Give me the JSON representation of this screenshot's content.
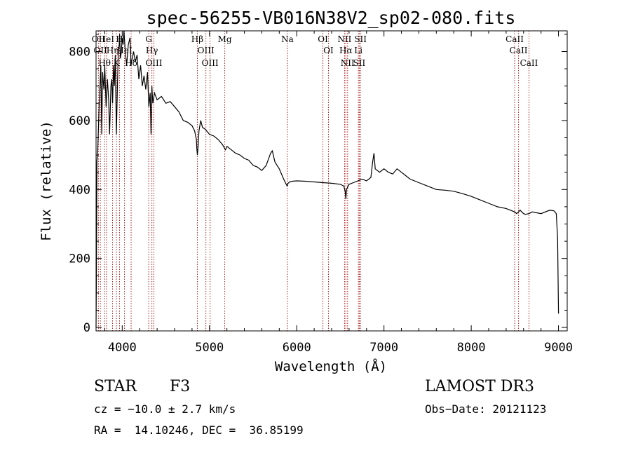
{
  "chart_data": {
    "type": "line",
    "title": "spec-56255-VB016N38V2_sp02-080.fits",
    "xlabel": "Wavelength (Å)",
    "ylabel": "Flux (relative)",
    "xlim": [
      3700,
      9100
    ],
    "ylim": [
      -10,
      860
    ],
    "x_ticks": [
      4000,
      5000,
      6000,
      7000,
      8000,
      9000
    ],
    "y_ticks": [
      0,
      200,
      400,
      600,
      800
    ],
    "x_tick_labels": [
      "4000",
      "5000",
      "6000",
      "7000",
      "8000",
      "9000"
    ],
    "y_tick_labels": [
      "0",
      "200",
      "400",
      "600",
      "800"
    ],
    "series": [
      {
        "name": "flux",
        "x": [
          3700,
          3703,
          3710,
          3720,
          3735,
          3745,
          3755,
          3765,
          3775,
          3790,
          3800,
          3815,
          3830,
          3845,
          3855,
          3870,
          3880,
          3890,
          3900,
          3910,
          3920,
          3933,
          3945,
          3955,
          3965,
          3970,
          3980,
          3990,
          4000,
          4010,
          4020,
          4035,
          4050,
          4070,
          4090,
          4101,
          4115,
          4130,
          4150,
          4170,
          4190,
          4210,
          4230,
          4250,
          4270,
          4290,
          4305,
          4320,
          4330,
          4340,
          4350,
          4370,
          4400,
          4450,
          4500,
          4550,
          4600,
          4650,
          4700,
          4750,
          4800,
          4830,
          4850,
          4855,
          4861,
          4868,
          4880,
          4900,
          4920,
          4950,
          5000,
          5050,
          5100,
          5150,
          5172,
          5183,
          5200,
          5250,
          5300,
          5350,
          5400,
          5450,
          5500,
          5550,
          5600,
          5650,
          5700,
          5720,
          5750,
          5800,
          5850,
          5870,
          5890,
          5895,
          5900,
          5920,
          5950,
          6000,
          6100,
          6200,
          6300,
          6400,
          6500,
          6540,
          6555,
          6563,
          6570,
          6600,
          6650,
          6700,
          6750,
          6800,
          6850,
          6870,
          6885,
          6900,
          6950,
          7000,
          7050,
          7100,
          7150,
          7200,
          7250,
          7300,
          7400,
          7500,
          7600,
          7700,
          7800,
          7900,
          8000,
          8100,
          8200,
          8300,
          8400,
          8500,
          8520,
          8542,
          8560,
          8600,
          8620,
          8662,
          8700,
          8800,
          8900,
          8950,
          8975,
          8990,
          9000
        ],
        "values": [
          0,
          120,
          480,
          520,
          640,
          700,
          760,
          560,
          740,
          690,
          760,
          640,
          720,
          660,
          560,
          700,
          720,
          650,
          760,
          700,
          790,
          560,
          700,
          800,
          820,
          850,
          780,
          800,
          840,
          820,
          860,
          800,
          760,
          820,
          840,
          760,
          780,
          800,
          770,
          790,
          720,
          760,
          700,
          730,
          690,
          740,
          640,
          680,
          560,
          700,
          650,
          680,
          660,
          670,
          650,
          655,
          640,
          625,
          600,
          595,
          585,
          570,
          545,
          520,
          500,
          520,
          570,
          600,
          580,
          575,
          560,
          555,
          545,
          530,
          520,
          515,
          525,
          515,
          505,
          500,
          490,
          485,
          470,
          465,
          455,
          470,
          505,
          512,
          480,
          460,
          430,
          420,
          410,
          412,
          418,
          422,
          424,
          425,
          424,
          422,
          420,
          418,
          415,
          410,
          395,
          372,
          400,
          415,
          420,
          425,
          430,
          425,
          435,
          480,
          505,
          460,
          450,
          460,
          450,
          445,
          460,
          450,
          440,
          430,
          420,
          410,
          400,
          398,
          395,
          388,
          380,
          370,
          360,
          350,
          345,
          335,
          330,
          335,
          340,
          330,
          328,
          330,
          335,
          330,
          340,
          338,
          330,
          260,
          40
        ]
      }
    ],
    "lines": [
      {
        "wavelength": 3727,
        "label": "OII"
      },
      {
        "wavelength": 3750,
        "label": "OII"
      },
      {
        "wavelength": 3798,
        "label": "Hθ"
      },
      {
        "wavelength": 3820,
        "label": "HeI"
      },
      {
        "wavelength": 3889,
        "label": "Hη"
      },
      {
        "wavelength": 3934,
        "label": "K"
      },
      {
        "wavelength": 3969,
        "label": "H"
      },
      {
        "wavelength": 4026,
        "label": "HeI"
      },
      {
        "wavelength": 4102,
        "label": "Hδ"
      },
      {
        "wavelength": 4304,
        "label": "G"
      },
      {
        "wavelength": 4340,
        "label": "Hγ"
      },
      {
        "wavelength": 4363,
        "label": "OIII"
      },
      {
        "wavelength": 4861,
        "label": "Hβ"
      },
      {
        "wavelength": 4959,
        "label": "OIII"
      },
      {
        "wavelength": 5007,
        "label": "OIII"
      },
      {
        "wavelength": 5175,
        "label": "Mg"
      },
      {
        "wavelength": 5893,
        "label": "Na"
      },
      {
        "wavelength": 6300,
        "label": "OI"
      },
      {
        "wavelength": 6364,
        "label": "OI"
      },
      {
        "wavelength": 6548,
        "label": "NII"
      },
      {
        "wavelength": 6563,
        "label": "Hα"
      },
      {
        "wavelength": 6583,
        "label": "NII"
      },
      {
        "wavelength": 6707,
        "label": "Li"
      },
      {
        "wavelength": 6717,
        "label": "SII"
      },
      {
        "wavelength": 6731,
        "label": "SII"
      },
      {
        "wavelength": 8498,
        "label": "CaII"
      },
      {
        "wavelength": 8542,
        "label": "CaII"
      },
      {
        "wavelength": 8662,
        "label": "CaII"
      }
    ]
  },
  "info": {
    "object_class": "STAR",
    "subclass": "F3",
    "survey": "LAMOST DR3",
    "redshift": "cz = −10.0 ± 2.7 km/s",
    "obs_date": "Obs−Date: 20121123",
    "coords": "RA =  14.10246, DEC =  36.85199"
  },
  "colors": {
    "line_marker": "#a82020",
    "spectrum": "#000000"
  }
}
